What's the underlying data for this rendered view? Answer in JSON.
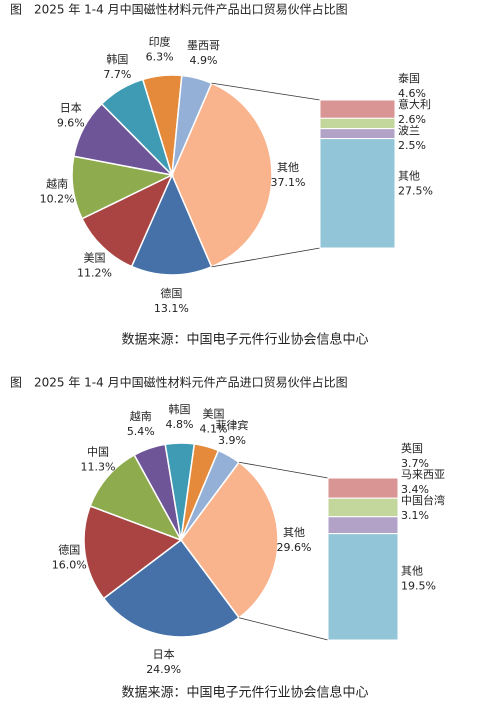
{
  "chart_data": [
    {
      "type": "pie-of-bar",
      "title": "图　2025 年 1-4 月中国磁性材料元件产品出口贸易伙伴占比图",
      "source": "数据来源：中国电子元件行业协会信息中心",
      "categories": [
        "其他",
        "德国",
        "美国",
        "越南",
        "日本",
        "韩国",
        "印度",
        "墨西哥"
      ],
      "values": [
        37.1,
        13.1,
        11.2,
        10.2,
        9.6,
        7.7,
        6.3,
        4.9
      ],
      "value_labels": [
        "37.1%",
        "13.1%",
        "11.2%",
        "10.2%",
        "9.6%",
        "7.7%",
        "6.3%",
        "4.9%"
      ],
      "colors": [
        "#f9b48d",
        "#4670a8",
        "#a94442",
        "#8eab4e",
        "#6d5598",
        "#3f9bb3",
        "#e58a3a",
        "#95b0d6"
      ],
      "bar": {
        "categories": [
          "泰国",
          "意大利",
          "波兰",
          "其他"
        ],
        "values": [
          4.6,
          2.6,
          2.5,
          27.5
        ],
        "value_labels": [
          "4.6%",
          "2.6%",
          "2.5%",
          "27.5%"
        ],
        "colors": [
          "#d99594",
          "#c3d69b",
          "#b2a2c7",
          "#92c5d7"
        ]
      }
    },
    {
      "type": "pie-of-bar",
      "title": "图　2025 年 1-4 月中国磁性材料元件产品进口贸易伙伴占比图",
      "source": "数据来源：中国电子元件行业协会信息中心",
      "categories": [
        "其他",
        "日本",
        "德国",
        "中国",
        "越南",
        "韩国",
        "美国",
        "菲律宾"
      ],
      "values": [
        29.6,
        24.9,
        16.0,
        11.3,
        5.4,
        4.8,
        4.1,
        3.9
      ],
      "value_labels": [
        "29.6%",
        "24.9%",
        "16.0%",
        "11.3%",
        "5.4%",
        "4.8%",
        "4.1%",
        "3.9%"
      ],
      "colors": [
        "#f9b48d",
        "#4670a8",
        "#a94442",
        "#8eab4e",
        "#6d5598",
        "#3f9bb3",
        "#e58a3a",
        "#95b0d6"
      ],
      "bar": {
        "categories": [
          "英国",
          "马来西亚",
          "中国台湾",
          "其他"
        ],
        "values": [
          3.7,
          3.4,
          3.1,
          19.5
        ],
        "value_labels": [
          "3.7%",
          "3.4%",
          "3.1%",
          "19.5%"
        ],
        "colors": [
          "#d99594",
          "#c3d69b",
          "#b2a2c7",
          "#92c5d7"
        ]
      }
    }
  ]
}
